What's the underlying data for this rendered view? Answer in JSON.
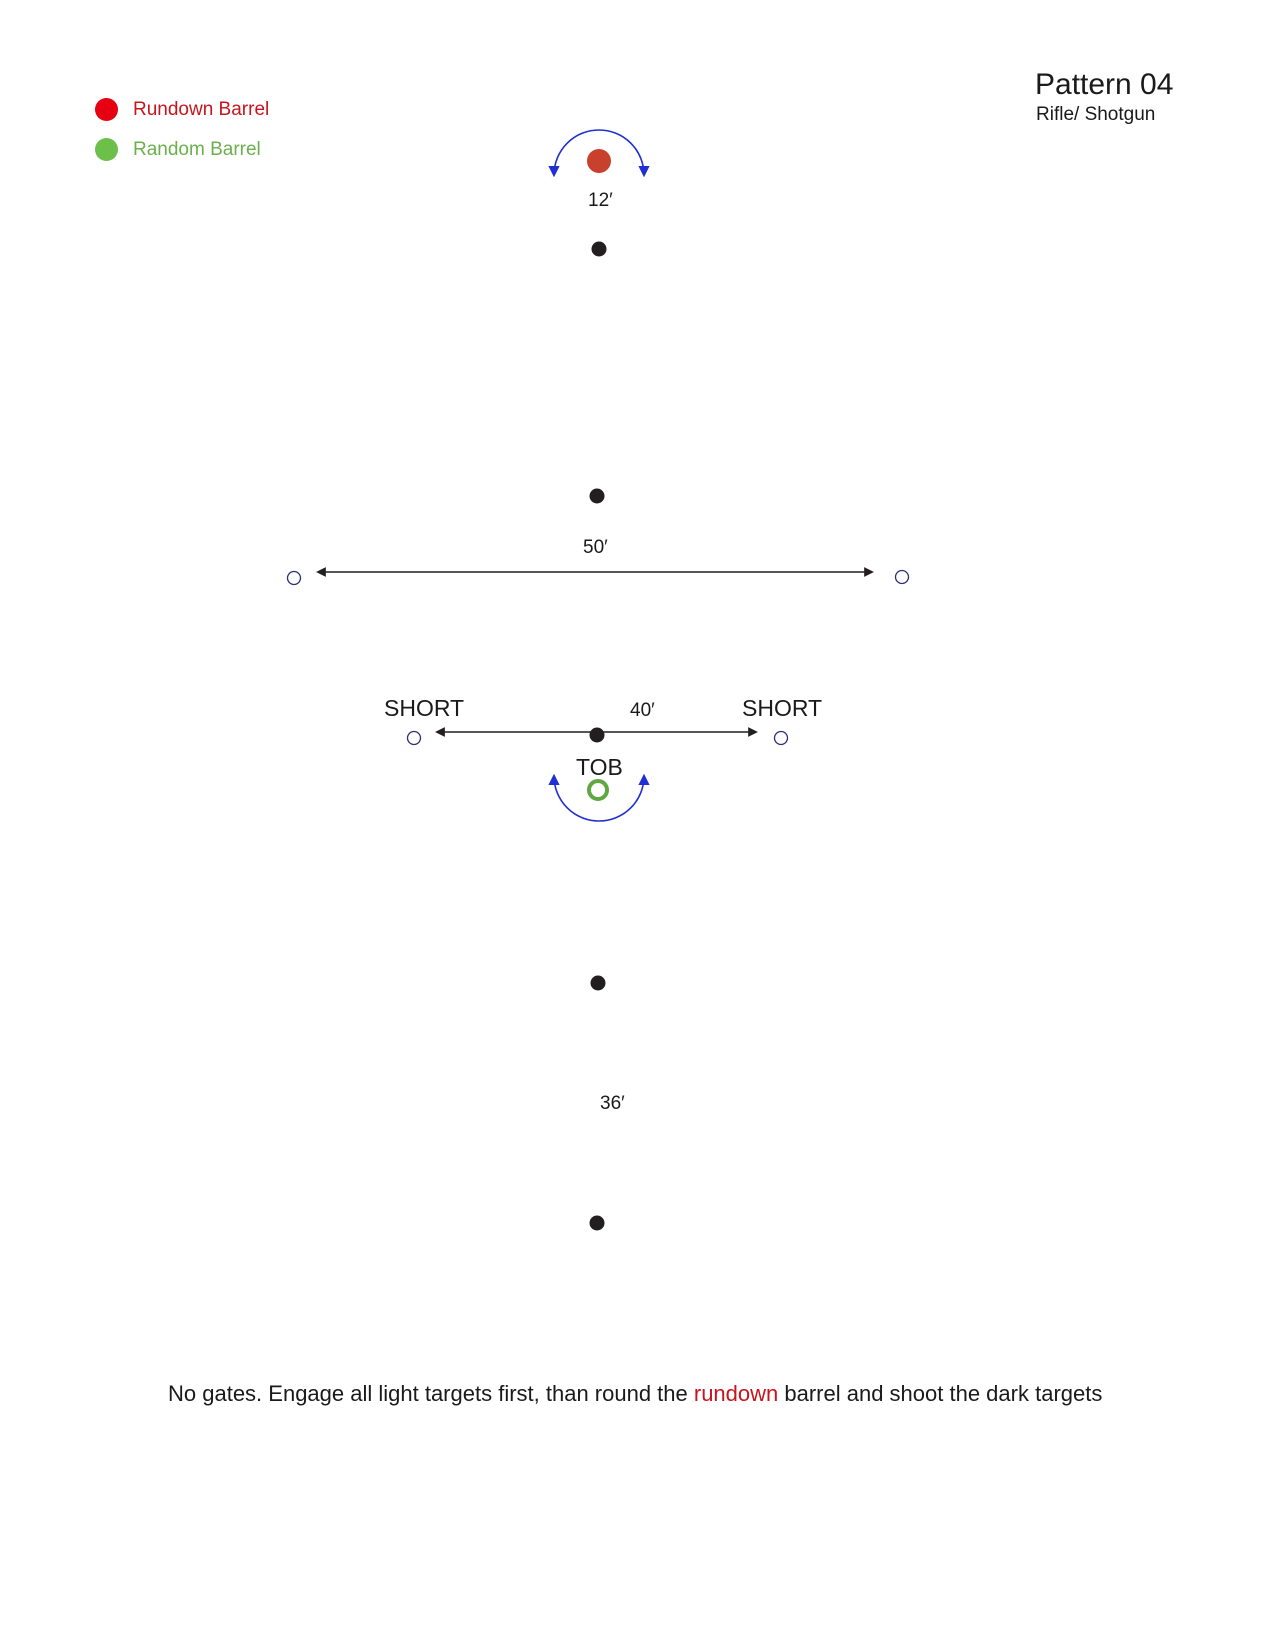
{
  "header": {
    "title": "Pattern 04",
    "subtitle": "Rifle/ Shotgun"
  },
  "legend": [
    {
      "label": "Rundown Barrel",
      "color": "#e60012",
      "text_color": "#c8141c"
    },
    {
      "label": "Random Barrel",
      "color": "#6cc04a",
      "text_color": "#6ab04c"
    }
  ],
  "diagram": {
    "distances": {
      "top_barrel": "12′",
      "light_row_far": "50′",
      "light_row_near": "40′",
      "bottom": "36′"
    },
    "labels": {
      "short_left": "SHORT",
      "short_right": "SHORT",
      "start": "TOB"
    },
    "colors": {
      "dark_target": "#231f20",
      "light_target_stroke": "#2b2f7a",
      "rundown_barrel": "#c8412c",
      "random_barrel": "#5fa83f",
      "rotation_arrow": "#1f2fd1",
      "distance_line": "#231f20"
    }
  },
  "note": {
    "part1": "No gates. Engage all light targets first, than round the ",
    "highlight": "rundown",
    "part2": " barrel and shoot the dark targets",
    "highlight_color": "#c8141c"
  }
}
